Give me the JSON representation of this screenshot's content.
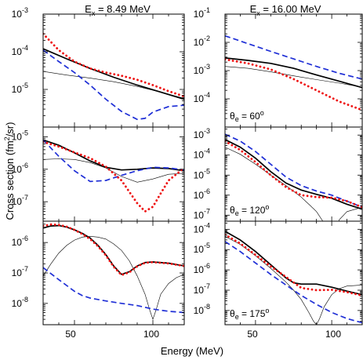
{
  "chart_data": {
    "type": "line",
    "xlabel": "Energy (MeV)",
    "ylabel": "Cross section (fm",
    "ylabel_sup": "2",
    "ylabel_tail": "/sr)",
    "columns": [
      {
        "title_prefix": "E",
        "title_sub": "x",
        "title_suffix": " = 8.49 MeV"
      },
      {
        "title_prefix": "E",
        "title_sub": "x",
        "title_suffix": " = 16.00 MeV"
      }
    ],
    "xlim": [
      30,
      120
    ],
    "x_ticks": [
      "50",
      "100"
    ],
    "x_tick_values": [
      50,
      100
    ],
    "panels": [
      {
        "row": 0,
        "col": 0,
        "ylim_exp": [
          -6,
          -3
        ],
        "y_tick_labels": [
          {
            "base": "10",
            "exp": "-5"
          },
          {
            "base": "10",
            "exp": "-4"
          },
          {
            "base": "10",
            "exp": "-3"
          }
        ],
        "series": [
          {
            "style": "thick",
            "x": [
              30,
              45,
              60,
              75,
              90,
              105,
              120
            ],
            "y": [
              0.00012,
              6.5e-05,
              3.6e-05,
              2.1e-05,
              1.3e-05,
              8.5e-06,
              5.5e-06
            ]
          },
          {
            "style": "thin",
            "x": [
              30,
              45,
              60,
              75,
              90,
              105,
              120
            ],
            "y": [
              3e-05,
              2.4e-05,
              2e-05,
              1.6e-05,
              1.2e-05,
              8.5e-06,
              5.8e-06
            ]
          },
          {
            "style": "dashed",
            "x": [
              30,
              40,
              50,
              60,
              70,
              80,
              90,
              95,
              100,
              110,
              120
            ],
            "y": [
              0.00011,
              5.5e-05,
              2.8e-05,
              1.3e-05,
              5.5e-06,
              2.6e-06,
              1.6e-06,
              1.7e-06,
              2.5e-06,
              3.5e-06,
              3.8e-06
            ]
          },
          {
            "style": "dotted",
            "x": [
              30,
              40,
              50,
              60,
              70,
              80,
              90,
              100,
              110,
              120
            ],
            "y": [
              0.0003,
              0.00011,
              5.5e-05,
              3.6e-05,
              2.8e-05,
              2.3e-05,
              1.8e-05,
              1.3e-05,
              9e-06,
              6.5e-06
            ]
          }
        ]
      },
      {
        "row": 0,
        "col": 1,
        "ylim_exp": [
          -5,
          -1
        ],
        "y_tick_labels": [
          {
            "base": "10",
            "exp": "-4"
          },
          {
            "base": "10",
            "exp": "-3"
          },
          {
            "base": "10",
            "exp": "-2"
          },
          {
            "base": "10",
            "exp": "-1"
          }
        ],
        "annotation": {
          "prefix": "θ",
          "sub": "e",
          "suffix": " = 60",
          "sup": "o"
        },
        "series": [
          {
            "style": "thick",
            "x": [
              30,
              45,
              60,
              75,
              90,
              105,
              120
            ],
            "y": [
              0.0028,
              0.0023,
              0.0018,
              0.0012,
              0.0007,
              0.00042,
              0.00025
            ]
          },
          {
            "style": "thin",
            "x": [
              30,
              45,
              60,
              75,
              90,
              105,
              120
            ],
            "y": [
              0.0014,
              0.0012,
              0.0009,
              0.00065,
              0.00048,
              0.00036,
              0.00026
            ]
          },
          {
            "style": "dashed",
            "x": [
              30,
              45,
              60,
              75,
              90,
              105,
              120
            ],
            "y": [
              0.017,
              0.009,
              0.0048,
              0.0026,
              0.0014,
              0.0008,
              0.0005
            ]
          },
          {
            "style": "dotted",
            "x": [
              30,
              45,
              60,
              75,
              90,
              105,
              120
            ],
            "y": [
              0.0025,
              0.0018,
              0.0011,
              0.0005,
              0.0002,
              8e-05,
              4e-05
            ]
          }
        ]
      },
      {
        "row": 1,
        "col": 0,
        "ylim_exp": [
          -7.6,
          -4.7
        ],
        "y_tick_labels": [
          {
            "base": "10",
            "exp": "-7"
          },
          {
            "base": "10",
            "exp": "-6"
          },
          {
            "base": "10",
            "exp": "-5"
          }
        ],
        "series": [
          {
            "style": "thick",
            "x": [
              30,
              40,
              50,
              60,
              70,
              80,
              90,
              100,
              110,
              120
            ],
            "y": [
              8e-06,
              5.5e-06,
              3.2e-06,
              1.8e-06,
              1.15e-06,
              9.5e-07,
              1e-06,
              1.1e-06,
              1.05e-06,
              9e-07
            ]
          },
          {
            "style": "thin",
            "x": [
              30,
              40,
              50,
              60,
              70,
              80,
              90,
              100,
              110,
              120
            ],
            "y": [
              2e-06,
              2.1e-06,
              2e-06,
              1.6e-06,
              1.1e-06,
              6e-07,
              4e-07,
              5e-07,
              7e-07,
              7.5e-07
            ]
          },
          {
            "style": "dashed",
            "x": [
              30,
              40,
              50,
              60,
              70,
              80,
              90,
              100,
              110,
              120
            ],
            "y": [
              8e-06,
              2.5e-06,
              9e-07,
              4.2e-07,
              4.5e-07,
              6.5e-07,
              9e-07,
              1.15e-06,
              1.1e-06,
              9.5e-07
            ]
          },
          {
            "style": "dotted",
            "x": [
              30,
              40,
              50,
              60,
              70,
              80,
              85,
              90,
              95,
              100,
              105,
              110,
              120
            ],
            "y": [
              7e-06,
              5e-06,
              3.3e-06,
              2.2e-06,
              1.2e-06,
              4.5e-07,
              2e-07,
              9e-08,
              5e-08,
              7e-08,
              1.8e-07,
              4.5e-07,
              1.1e-06
            ]
          }
        ]
      },
      {
        "row": 1,
        "col": 1,
        "ylim_exp": [
          -7.3,
          -2.6
        ],
        "y_tick_labels": [
          {
            "base": "10",
            "exp": "-7"
          },
          {
            "base": "10",
            "exp": "-6"
          },
          {
            "base": "10",
            "exp": "-5"
          },
          {
            "base": "10",
            "exp": "-4"
          },
          {
            "base": "10",
            "exp": "-3"
          }
        ],
        "annotation": {
          "prefix": "θ",
          "sub": "e",
          "suffix": " = 120",
          "sup": "o"
        },
        "series": [
          {
            "style": "thick",
            "x": [
              30,
              40,
              50,
              60,
              70,
              80,
              90,
              100,
              110,
              120
            ],
            "y": [
              0.0006,
              0.00025,
              7e-05,
              1.5e-05,
              4e-06,
              1.8e-06,
              1.1e-06,
              7e-07,
              3.5e-07,
              2e-07
            ]
          },
          {
            "style": "thin",
            "x": [
              30,
              40,
              50,
              60,
              70,
              80,
              85,
              90,
              95,
              98,
              100,
              102,
              105,
              110,
              120
            ],
            "y": [
              0.00025,
              0.00011,
              3.5e-05,
              1e-05,
              3e-06,
              8e-07,
              3.5e-07,
              1.5e-07,
              4e-08,
              1e-08,
              5e-09,
              1.5e-08,
              6e-08,
              1.5e-07,
              2.5e-07
            ]
          },
          {
            "style": "dashed",
            "x": [
              30,
              40,
              50,
              60,
              70,
              80,
              90,
              100,
              110,
              120
            ],
            "y": [
              0.0011,
              0.0005,
              0.00015,
              3.5e-05,
              8e-06,
              3e-06,
              1.6e-06,
              1e-06,
              5e-07,
              2.5e-07
            ]
          },
          {
            "style": "dotted",
            "x": [
              30,
              40,
              50,
              60,
              70,
              80,
              90,
              100,
              110,
              120
            ],
            "y": [
              0.0005,
              0.00018,
              4.5e-05,
              1e-05,
              2.5e-06,
              1e-06,
              8e-07,
              7.5e-07,
              5e-07,
              2.5e-07
            ]
          }
        ]
      },
      {
        "row": 2,
        "col": 0,
        "ylim_exp": [
          -8.7,
          -5.3
        ],
        "y_tick_labels": [
          {
            "base": "10",
            "exp": "-8"
          },
          {
            "base": "10",
            "exp": "-7"
          },
          {
            "base": "10",
            "exp": "-6"
          }
        ],
        "series": [
          {
            "style": "thick",
            "x": [
              30,
              35,
              40,
              45,
              50,
              55,
              60,
              65,
              70,
              75,
              80,
              85,
              90,
              95,
              100,
              110,
              120
            ],
            "y": [
              3e-06,
              3.5e-06,
              3.6e-06,
              3.2e-06,
              2.6e-06,
              2e-06,
              1.4e-06,
              8e-07,
              4e-07,
              1.7e-07,
              9e-08,
              1.1e-07,
              1.7e-07,
              2.2e-07,
              2.3e-07,
              2.1e-07,
              1.7e-07
            ]
          },
          {
            "style": "thin",
            "x": [
              30,
              35,
              40,
              45,
              50,
              55,
              60,
              65,
              70,
              75,
              80,
              85,
              90,
              95,
              98,
              100,
              102,
              105,
              110,
              115,
              120
            ],
            "y": [
              8e-08,
              2e-07,
              4.5e-07,
              8e-07,
              1.2e-06,
              1.5e-06,
              1.6e-06,
              1.5e-06,
              1.3e-06,
              9e-07,
              5.5e-07,
              2.5e-07,
              8e-08,
              2e-08,
              6e-09,
              3e-09,
              6e-09,
              2e-08,
              4.5e-08,
              7e-08,
              9e-08
            ]
          },
          {
            "style": "dashed",
            "x": [
              30,
              40,
              50,
              55,
              60,
              70,
              80,
              90,
              100,
              110,
              120
            ],
            "y": [
              1.5e-07,
              6e-08,
              2.5e-08,
              1.8e-08,
              1.5e-08,
              1.2e-08,
              1e-08,
              8.5e-09,
              6.5e-09,
              5.5e-09,
              5e-09
            ]
          },
          {
            "style": "dotted",
            "x": [
              30,
              35,
              40,
              45,
              50,
              55,
              60,
              65,
              70,
              75,
              80,
              85,
              90,
              95,
              100,
              110,
              120
            ],
            "y": [
              3.5e-06,
              3.9e-06,
              3.8e-06,
              3.3e-06,
              2.6e-06,
              1.9e-06,
              1.3e-06,
              7.5e-07,
              3.8e-07,
              1.6e-07,
              8.5e-08,
              1.05e-07,
              1.65e-07,
              2.15e-07,
              2.25e-07,
              2.05e-07,
              1.7e-07
            ]
          }
        ]
      },
      {
        "row": 2,
        "col": 1,
        "ylim_exp": [
          -8.7,
          -3.6
        ],
        "y_tick_labels": [
          {
            "base": "10",
            "exp": "-8"
          },
          {
            "base": "10",
            "exp": "-7"
          },
          {
            "base": "10",
            "exp": "-6"
          },
          {
            "base": "10",
            "exp": "-5"
          },
          {
            "base": "10",
            "exp": "-4"
          }
        ],
        "annotation": {
          "prefix": "θ",
          "sub": "e",
          "suffix": " = 175",
          "sup": "o"
        },
        "series": [
          {
            "style": "thick",
            "x": [
              30,
              40,
              50,
              60,
              70,
              75,
              80,
              90,
              100,
              110,
              120
            ],
            "y": [
              8e-05,
              3e-05,
              8e-06,
              1.8e-06,
              4e-07,
              2.3e-07,
              2e-07,
              2e-07,
              1.4e-07,
              9e-08,
              6e-08
            ]
          },
          {
            "style": "thin",
            "x": [
              30,
              40,
              50,
              60,
              70,
              75,
              80,
              85,
              88,
              90,
              92,
              95,
              100,
              105,
              110,
              120
            ],
            "y": [
              4.5e-05,
              1.8e-05,
              5e-06,
              1.2e-06,
              2.5e-07,
              1e-07,
              3.5e-08,
              8e-09,
              3e-09,
              2e-09,
              4e-09,
              1.5e-08,
              6e-08,
              1.2e-07,
              1.6e-07,
              1.8e-07
            ]
          },
          {
            "style": "dashed",
            "x": [
              30,
              40,
              50,
              60,
              70,
              80,
              90,
              100,
              110,
              120
            ],
            "y": [
              2.5e-05,
              8e-06,
              2.2e-06,
              6e-07,
              1.8e-07,
              5.5e-08,
              2e-08,
              8e-09,
              4e-09,
              2.5e-09
            ]
          },
          {
            "style": "dotted",
            "x": [
              30,
              40,
              50,
              60,
              70,
              80,
              90,
              100,
              110,
              120
            ],
            "y": [
              5.5e-05,
              2e-05,
              5.5e-06,
              1.5e-06,
              4.5e-07,
              1.3e-07,
              1e-07,
              1.05e-07,
              8e-08,
              5.5e-08
            ]
          }
        ]
      }
    ]
  }
}
